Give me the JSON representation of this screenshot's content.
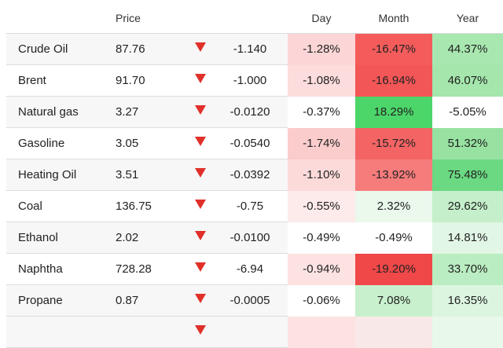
{
  "header": {
    "price": "Price",
    "day": "Day",
    "month": "Month",
    "year": "Year"
  },
  "colors": {
    "arrow_down": "#e0302a"
  },
  "rows": [
    {
      "name": "Crude Oil",
      "price": "87.76",
      "direction": "down",
      "change": "-1.140",
      "day": "-1.28%",
      "month": "-16.47%",
      "year": "44.37%",
      "day_bg": "#fcd6d6",
      "month_bg": "#f45c5c",
      "year_bg": "#a8e8b0"
    },
    {
      "name": "Brent",
      "price": "91.70",
      "direction": "down",
      "change": "-1.000",
      "day": "-1.08%",
      "month": "-16.94%",
      "year": "46.07%",
      "day_bg": "#fcdcdc",
      "month_bg": "#f35656",
      "year_bg": "#a4e6ac"
    },
    {
      "name": "Natural gas",
      "price": "3.27",
      "direction": "down",
      "change": "-0.0120",
      "day": "-0.37%",
      "month": "18.29%",
      "year": "-5.05%",
      "day_bg": "#ffffff",
      "month_bg": "#4cd66a",
      "year_bg": "#ffffff"
    },
    {
      "name": "Gasoline",
      "price": "3.05",
      "direction": "down",
      "change": "-0.0540",
      "day": "-1.74%",
      "month": "-15.72%",
      "year": "51.32%",
      "day_bg": "#fbcccc",
      "month_bg": "#f46464",
      "year_bg": "#97e2a1"
    },
    {
      "name": "Heating Oil",
      "price": "3.51",
      "direction": "down",
      "change": "-0.0392",
      "day": "-1.10%",
      "month": "-13.92%",
      "year": "75.48%",
      "day_bg": "#fcdada",
      "month_bg": "#f67c7c",
      "year_bg": "#6ad982"
    },
    {
      "name": "Coal",
      "price": "136.75",
      "direction": "down",
      "change": "-0.75",
      "day": "-0.55%",
      "month": "2.32%",
      "year": "29.62%",
      "day_bg": "#fdeaea",
      "month_bg": "#eaf9ec",
      "year_bg": "#c4efca"
    },
    {
      "name": "Ethanol",
      "price": "2.02",
      "direction": "down",
      "change": "-0.0100",
      "day": "-0.49%",
      "month": "-0.49%",
      "year": "14.81%",
      "day_bg": "#ffffff",
      "month_bg": "#ffffff",
      "year_bg": "#e2f6e5"
    },
    {
      "name": "Naphtha",
      "price": "728.28",
      "direction": "down",
      "change": "-6.94",
      "day": "-0.94%",
      "month": "-19.20%",
      "year": "33.70%",
      "day_bg": "#fde2e2",
      "month_bg": "#f04848",
      "year_bg": "#baedc1"
    },
    {
      "name": "Propane",
      "price": "0.87",
      "direction": "down",
      "change": "-0.0005",
      "day": "-0.06%",
      "month": "7.08%",
      "year": "16.35%",
      "day_bg": "#ffffff",
      "month_bg": "#c8f0cd",
      "year_bg": "#dcf5e0"
    }
  ],
  "partial_row": {
    "day_bg": "#fde2e2",
    "month_bg": "#f8e8e8",
    "year_bg": "#e8f8ea"
  }
}
